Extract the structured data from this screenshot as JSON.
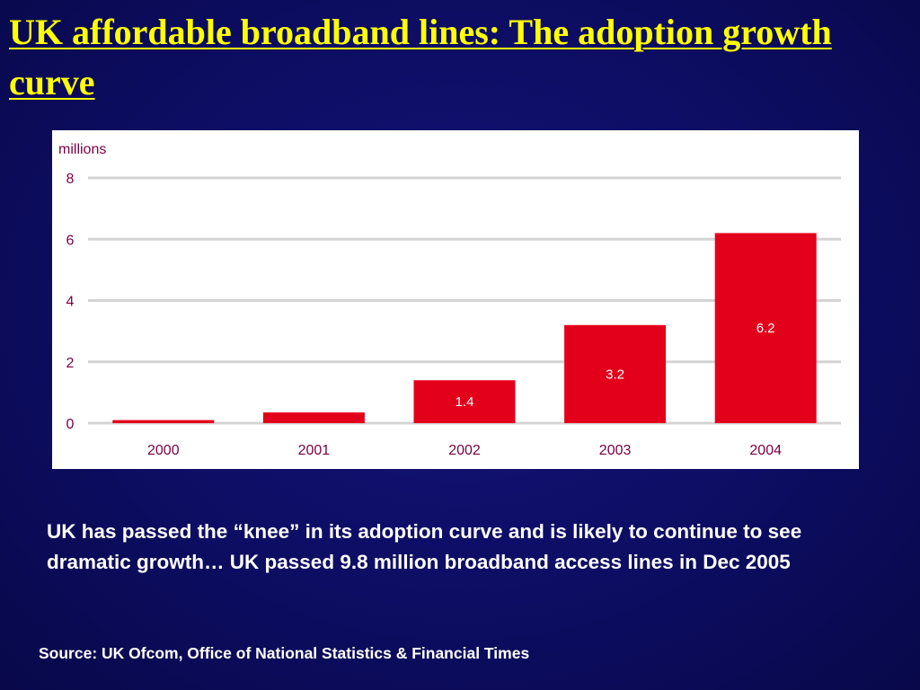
{
  "slide": {
    "title": "UK affordable broadband lines: The adoption growth curve",
    "body": "UK has passed the “knee” in its adoption curve and is likely to continue to see dramatic growth…  UK passed 9.8 million broadband access lines in Dec 2005",
    "source": "Source: UK Ofcom, Office of National Statistics & Financial Times"
  },
  "colors": {
    "background": "#0d0d63",
    "title": "#ffff00",
    "bar": "#e3001b",
    "axis_text": "#7a0040",
    "gridline": "#d4d4d4",
    "bar_label": "#ffffff"
  },
  "chart_data": {
    "type": "bar",
    "title": "",
    "xlabel": "",
    "ylabel": "millions",
    "categories": [
      "2000",
      "2001",
      "2002",
      "2003",
      "2004"
    ],
    "values": [
      0.1,
      0.35,
      1.4,
      3.2,
      6.2
    ],
    "data_labels": [
      "",
      "",
      "1.4",
      "3.2",
      "6.2"
    ],
    "ylim": [
      0,
      8
    ],
    "yticks": [
      0,
      2,
      4,
      6,
      8
    ],
    "grid": true,
    "legend": "none"
  }
}
